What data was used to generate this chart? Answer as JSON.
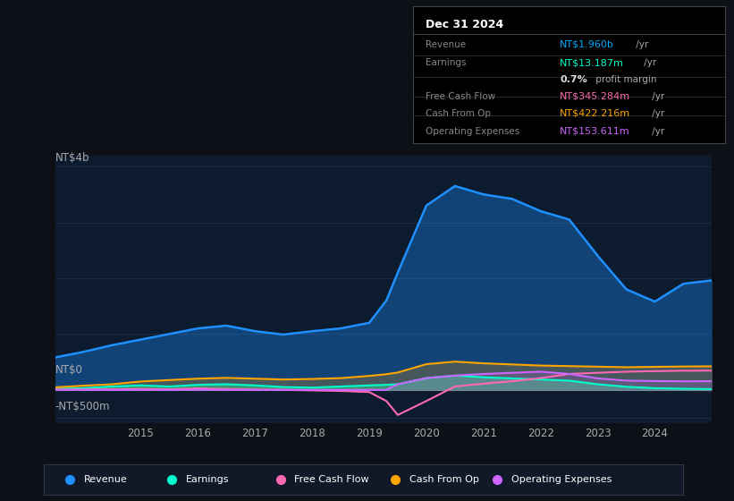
{
  "bg_color": "#0d1117",
  "plot_bg_color": "#0d1b2e",
  "info_title": "Dec 31 2024",
  "info_rows": [
    {
      "label": "Revenue",
      "value": "NT$1.960b",
      "unit": " /yr",
      "color": "#00aaff"
    },
    {
      "label": "Earnings",
      "value": "NT$13.187m",
      "unit": " /yr",
      "color": "#00ffcc"
    },
    {
      "label": "",
      "value": "0.7%",
      "unit": " profit margin",
      "color": "#dddddd",
      "bold_val": true
    },
    {
      "label": "Free Cash Flow",
      "value": "NT$345.284m",
      "unit": " /yr",
      "color": "#ff69b4"
    },
    {
      "label": "Cash From Op",
      "value": "NT$422.216m",
      "unit": " /yr",
      "color": "#ffa500"
    },
    {
      "label": "Operating Expenses",
      "value": "NT$153.611m",
      "unit": " /yr",
      "color": "#cc66ff"
    }
  ],
  "ylabel_top": "NT$4b",
  "ylabel_mid": "NT$0",
  "ylabel_bot": "-NT$500m",
  "years": [
    2013.5,
    2014,
    2014.5,
    2015,
    2015.5,
    2016,
    2016.5,
    2017,
    2017.5,
    2018,
    2018.5,
    2019,
    2019.3,
    2019.5,
    2020,
    2020.5,
    2021,
    2021.5,
    2022,
    2022.5,
    2023,
    2023.5,
    2024,
    2024.5,
    2025.0
  ],
  "revenue": [
    580,
    680,
    800,
    900,
    1000,
    1100,
    1150,
    1050,
    990,
    1050,
    1100,
    1200,
    1600,
    2100,
    3300,
    3650,
    3500,
    3420,
    3200,
    3050,
    2400,
    1800,
    1580,
    1900,
    1960
  ],
  "earnings": [
    20,
    30,
    60,
    80,
    60,
    90,
    100,
    80,
    50,
    40,
    60,
    80,
    90,
    100,
    210,
    255,
    225,
    205,
    185,
    165,
    100,
    55,
    30,
    20,
    13
  ],
  "free_cf": [
    5,
    5,
    10,
    15,
    10,
    25,
    15,
    5,
    0,
    -10,
    -20,
    -40,
    -200,
    -450,
    -200,
    60,
    110,
    155,
    210,
    285,
    305,
    325,
    335,
    342,
    345
  ],
  "cash_op": [
    45,
    75,
    100,
    150,
    175,
    200,
    215,
    200,
    185,
    195,
    210,
    250,
    280,
    310,
    460,
    505,
    475,
    455,
    435,
    425,
    415,
    405,
    412,
    418,
    422
  ],
  "op_exp": [
    0,
    0,
    0,
    0,
    0,
    0,
    0,
    0,
    0,
    0,
    0,
    0,
    0,
    100,
    210,
    255,
    285,
    305,
    325,
    285,
    205,
    165,
    158,
    153,
    154
  ],
  "xticks": [
    2015,
    2016,
    2017,
    2018,
    2019,
    2020,
    2021,
    2022,
    2023,
    2024
  ],
  "ylim_m": [
    -600,
    4200
  ],
  "revenue_color": "#1e90ff",
  "earnings_color": "#00ffcc",
  "free_cf_color": "#ff69b4",
  "cash_op_color": "#ffa500",
  "op_exp_color": "#cc66ff",
  "legend_items": [
    {
      "label": "Revenue",
      "color": "#1e90ff"
    },
    {
      "label": "Earnings",
      "color": "#00ffcc"
    },
    {
      "label": "Free Cash Flow",
      "color": "#ff69b4"
    },
    {
      "label": "Cash From Op",
      "color": "#ffa500"
    },
    {
      "label": "Operating Expenses",
      "color": "#cc66ff"
    }
  ]
}
